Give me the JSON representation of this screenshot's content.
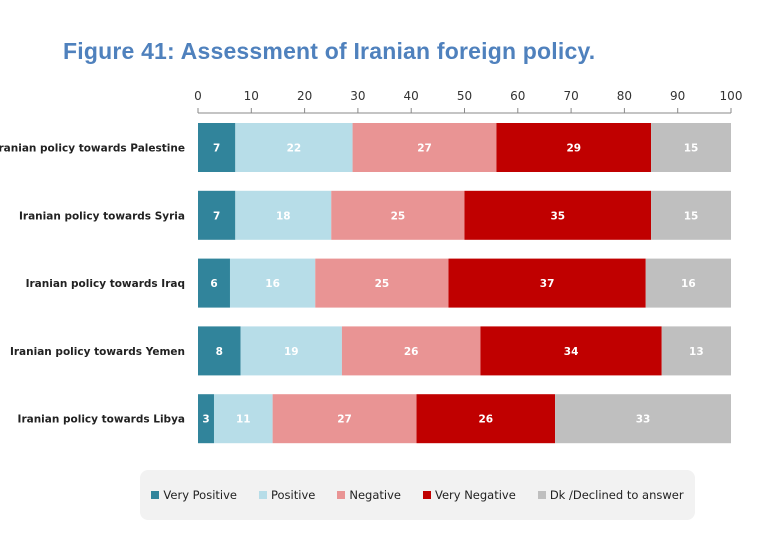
{
  "chart_data": {
    "type": "bar",
    "orientation": "horizontal",
    "stacked": true,
    "title": "Figure 41: Assessment of Iranian foreign policy.",
    "categories": [
      "Iranian policy towards Palestine",
      "Iranian policy towards Syria",
      "Iranian policy towards Iraq",
      "Iranian policy towards Yemen",
      "Iranian policy towards Libya"
    ],
    "series": [
      {
        "name": "Very Positive",
        "color": "#31849b",
        "values": [
          7,
          7,
          6,
          8,
          3
        ]
      },
      {
        "name": "Positive",
        "color": "#b7dde8",
        "values": [
          22,
          18,
          16,
          19,
          11
        ]
      },
      {
        "name": "Negative",
        "color": "#e99494",
        "values": [
          27,
          25,
          25,
          26,
          27
        ]
      },
      {
        "name": "Very Negative",
        "color": "#c00000",
        "values": [
          29,
          35,
          37,
          34,
          26
        ]
      },
      {
        "name": "Dk /Declined to answer",
        "color": "#bfbfbf",
        "values": [
          15,
          15,
          16,
          13,
          33
        ]
      }
    ],
    "xlim": [
      0,
      100
    ],
    "xticks": [
      0,
      10,
      20,
      30,
      40,
      50,
      60,
      70,
      80,
      90,
      100
    ],
    "axis_position": "top",
    "grid": false,
    "legend": "bottom"
  }
}
